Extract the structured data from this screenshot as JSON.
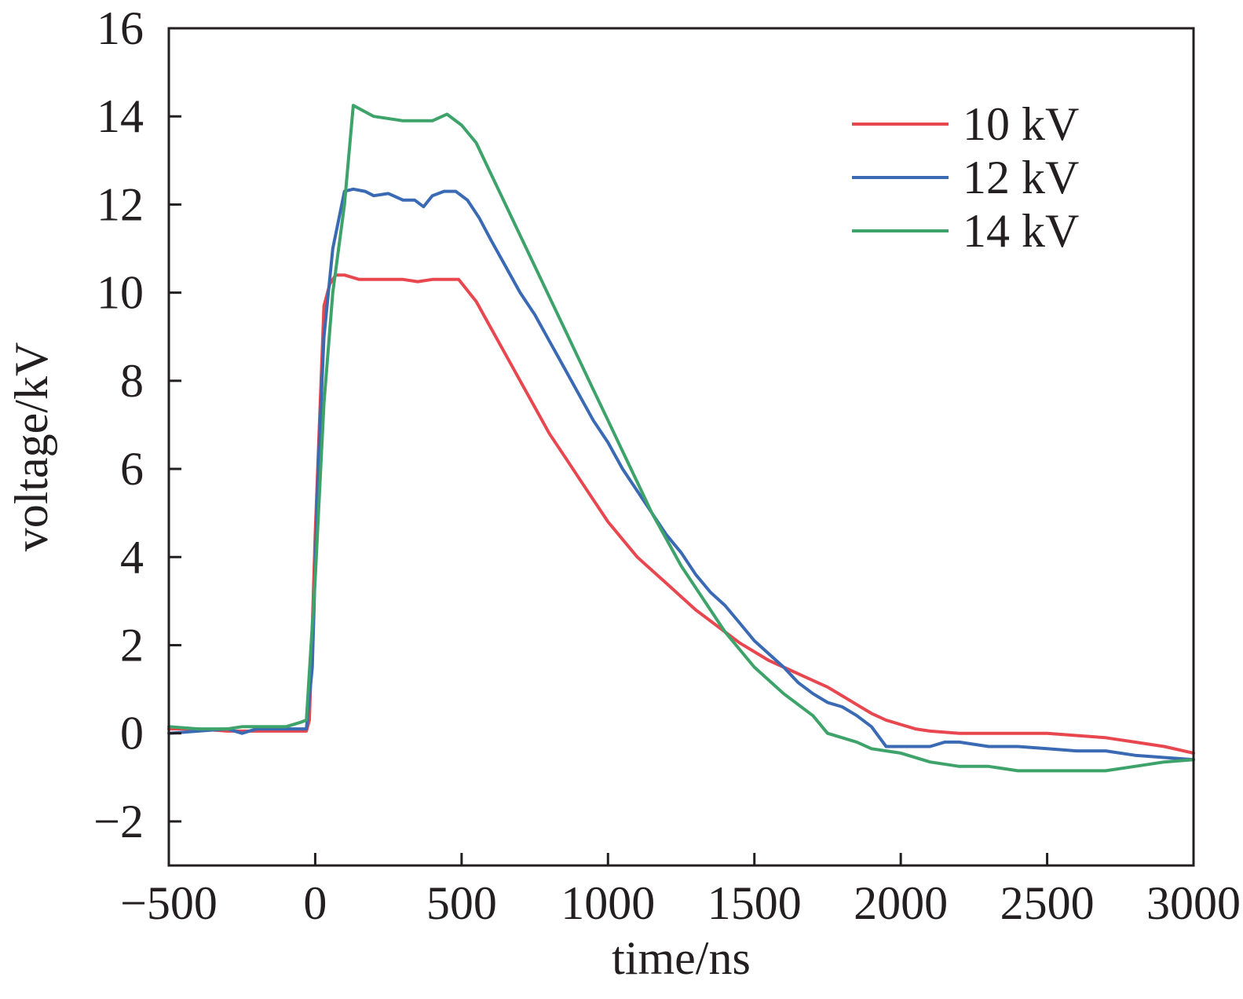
{
  "chart_data": {
    "type": "line",
    "title": "",
    "xlabel": "time/ns",
    "ylabel": "voltage/kV",
    "xlim": [
      -500,
      3000
    ],
    "ylim": [
      -3,
      16
    ],
    "x_ticks": [
      -500,
      0,
      500,
      1000,
      1500,
      2000,
      2500,
      3000
    ],
    "y_ticks": [
      -2,
      0,
      2,
      4,
      6,
      8,
      10,
      12,
      14,
      16
    ],
    "x_tick_labels": [
      "−500",
      "0",
      "500",
      "1000",
      "1500",
      "2000",
      "2500",
      "3000"
    ],
    "y_tick_labels": [
      "−2",
      "0",
      "2",
      "4",
      "6",
      "8",
      "10",
      "12",
      "14",
      "16"
    ],
    "grid": false,
    "legend_position": "top-right",
    "series": [
      {
        "name": "10 kV",
        "color": "#e8474f",
        "points": [
          [
            -500,
            0.1
          ],
          [
            -400,
            0.1
          ],
          [
            -300,
            0.05
          ],
          [
            -200,
            0.05
          ],
          [
            -100,
            0.05
          ],
          [
            -30,
            0.05
          ],
          [
            -20,
            0.3
          ],
          [
            0,
            4.5
          ],
          [
            20,
            8.0
          ],
          [
            30,
            9.7
          ],
          [
            50,
            10.2
          ],
          [
            70,
            10.4
          ],
          [
            100,
            10.4
          ],
          [
            150,
            10.3
          ],
          [
            200,
            10.3
          ],
          [
            250,
            10.3
          ],
          [
            300,
            10.3
          ],
          [
            350,
            10.25
          ],
          [
            400,
            10.3
          ],
          [
            450,
            10.3
          ],
          [
            490,
            10.3
          ],
          [
            550,
            9.8
          ],
          [
            600,
            9.2
          ],
          [
            650,
            8.6
          ],
          [
            700,
            8.0
          ],
          [
            750,
            7.4
          ],
          [
            800,
            6.8
          ],
          [
            850,
            6.3
          ],
          [
            900,
            5.8
          ],
          [
            950,
            5.3
          ],
          [
            1000,
            4.8
          ],
          [
            1050,
            4.4
          ],
          [
            1100,
            4.0
          ],
          [
            1150,
            3.7
          ],
          [
            1200,
            3.4
          ],
          [
            1250,
            3.1
          ],
          [
            1300,
            2.8
          ],
          [
            1350,
            2.55
          ],
          [
            1400,
            2.3
          ],
          [
            1450,
            2.05
          ],
          [
            1500,
            1.85
          ],
          [
            1550,
            1.65
          ],
          [
            1600,
            1.5
          ],
          [
            1650,
            1.35
          ],
          [
            1700,
            1.2
          ],
          [
            1750,
            1.05
          ],
          [
            1800,
            0.85
          ],
          [
            1850,
            0.65
          ],
          [
            1900,
            0.45
          ],
          [
            1950,
            0.3
          ],
          [
            2000,
            0.2
          ],
          [
            2050,
            0.1
          ],
          [
            2100,
            0.05
          ],
          [
            2200,
            0.0
          ],
          [
            2300,
            0.0
          ],
          [
            2400,
            0.0
          ],
          [
            2500,
            0.0
          ],
          [
            2600,
            -0.05
          ],
          [
            2700,
            -0.1
          ],
          [
            2800,
            -0.2
          ],
          [
            2900,
            -0.3
          ],
          [
            3000,
            -0.45
          ]
        ]
      },
      {
        "name": "12 kV",
        "color": "#3a6ab4",
        "points": [
          [
            -500,
            0.0
          ],
          [
            -400,
            0.05
          ],
          [
            -300,
            0.1
          ],
          [
            -250,
            0.0
          ],
          [
            -200,
            0.1
          ],
          [
            -100,
            0.1
          ],
          [
            -30,
            0.1
          ],
          [
            -10,
            1.5
          ],
          [
            10,
            6.0
          ],
          [
            30,
            9.0
          ],
          [
            60,
            11.0
          ],
          [
            100,
            12.3
          ],
          [
            130,
            12.35
          ],
          [
            170,
            12.3
          ],
          [
            200,
            12.2
          ],
          [
            250,
            12.25
          ],
          [
            300,
            12.1
          ],
          [
            340,
            12.1
          ],
          [
            370,
            11.95
          ],
          [
            400,
            12.2
          ],
          [
            440,
            12.3
          ],
          [
            480,
            12.3
          ],
          [
            520,
            12.1
          ],
          [
            560,
            11.7
          ],
          [
            600,
            11.2
          ],
          [
            650,
            10.6
          ],
          [
            700,
            10.0
          ],
          [
            750,
            9.5
          ],
          [
            800,
            8.9
          ],
          [
            850,
            8.3
          ],
          [
            900,
            7.7
          ],
          [
            950,
            7.1
          ],
          [
            1000,
            6.6
          ],
          [
            1050,
            6.0
          ],
          [
            1100,
            5.5
          ],
          [
            1150,
            5.0
          ],
          [
            1200,
            4.5
          ],
          [
            1250,
            4.1
          ],
          [
            1300,
            3.6
          ],
          [
            1350,
            3.2
          ],
          [
            1400,
            2.9
          ],
          [
            1450,
            2.5
          ],
          [
            1500,
            2.1
          ],
          [
            1550,
            1.8
          ],
          [
            1600,
            1.5
          ],
          [
            1650,
            1.15
          ],
          [
            1700,
            0.9
          ],
          [
            1750,
            0.7
          ],
          [
            1800,
            0.6
          ],
          [
            1850,
            0.4
          ],
          [
            1900,
            0.15
          ],
          [
            1950,
            -0.3
          ],
          [
            2000,
            -0.3
          ],
          [
            2100,
            -0.3
          ],
          [
            2150,
            -0.2
          ],
          [
            2200,
            -0.2
          ],
          [
            2300,
            -0.3
          ],
          [
            2400,
            -0.3
          ],
          [
            2500,
            -0.35
          ],
          [
            2600,
            -0.4
          ],
          [
            2700,
            -0.4
          ],
          [
            2800,
            -0.5
          ],
          [
            2900,
            -0.55
          ],
          [
            3000,
            -0.6
          ]
        ]
      },
      {
        "name": "14 kV",
        "color": "#3ea36a",
        "points": [
          [
            -500,
            0.15
          ],
          [
            -400,
            0.1
          ],
          [
            -300,
            0.1
          ],
          [
            -250,
            0.15
          ],
          [
            -200,
            0.15
          ],
          [
            -100,
            0.15
          ],
          [
            -50,
            0.25
          ],
          [
            -30,
            0.3
          ],
          [
            0,
            3.5
          ],
          [
            30,
            7.5
          ],
          [
            60,
            10.0
          ],
          [
            100,
            12.0
          ],
          [
            130,
            14.25
          ],
          [
            200,
            14.0
          ],
          [
            300,
            13.9
          ],
          [
            400,
            13.9
          ],
          [
            450,
            14.05
          ],
          [
            500,
            13.8
          ],
          [
            550,
            13.4
          ],
          [
            600,
            12.7
          ],
          [
            650,
            12.0
          ],
          [
            700,
            11.3
          ],
          [
            750,
            10.6
          ],
          [
            800,
            9.9
          ],
          [
            850,
            9.2
          ],
          [
            900,
            8.5
          ],
          [
            950,
            7.8
          ],
          [
            1000,
            7.1
          ],
          [
            1050,
            6.4
          ],
          [
            1100,
            5.7
          ],
          [
            1150,
            5.0
          ],
          [
            1200,
            4.4
          ],
          [
            1250,
            3.8
          ],
          [
            1300,
            3.3
          ],
          [
            1350,
            2.8
          ],
          [
            1400,
            2.3
          ],
          [
            1450,
            1.9
          ],
          [
            1500,
            1.5
          ],
          [
            1550,
            1.2
          ],
          [
            1600,
            0.9
          ],
          [
            1650,
            0.65
          ],
          [
            1700,
            0.4
          ],
          [
            1750,
            0.0
          ],
          [
            1800,
            -0.1
          ],
          [
            1850,
            -0.2
          ],
          [
            1900,
            -0.35
          ],
          [
            2000,
            -0.45
          ],
          [
            2100,
            -0.65
          ],
          [
            2200,
            -0.75
          ],
          [
            2300,
            -0.75
          ],
          [
            2400,
            -0.85
          ],
          [
            2500,
            -0.85
          ],
          [
            2600,
            -0.85
          ],
          [
            2700,
            -0.85
          ],
          [
            2800,
            -0.75
          ],
          [
            2900,
            -0.65
          ],
          [
            3000,
            -0.6
          ]
        ]
      }
    ]
  }
}
